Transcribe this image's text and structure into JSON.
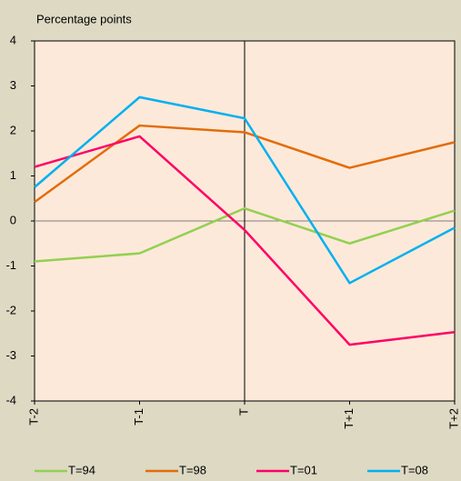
{
  "chart_data": {
    "type": "line",
    "y_label": "Percentage points",
    "categories": [
      "T-2",
      "T-1",
      "T",
      "T+1",
      "T+2"
    ],
    "series": [
      {
        "name": "T=94",
        "color": "#92d050",
        "values": [
          -0.9,
          -0.72,
          0.28,
          -0.5,
          0.23
        ]
      },
      {
        "name": "T=98",
        "color": "#e36c09",
        "values": [
          0.42,
          2.12,
          1.97,
          1.18,
          1.75
        ]
      },
      {
        "name": "T=01",
        "color": "#ff0066",
        "values": [
          1.2,
          1.88,
          -0.2,
          -2.75,
          -2.47
        ]
      },
      {
        "name": "T=08",
        "color": "#00b0f0",
        "values": [
          0.75,
          2.75,
          2.28,
          -1.38,
          -0.15
        ]
      }
    ],
    "ylim": [
      -4,
      4
    ],
    "yticks": [
      -4,
      -3,
      -2,
      -1,
      0,
      1,
      2,
      3,
      4
    ],
    "legend": "bottom"
  }
}
